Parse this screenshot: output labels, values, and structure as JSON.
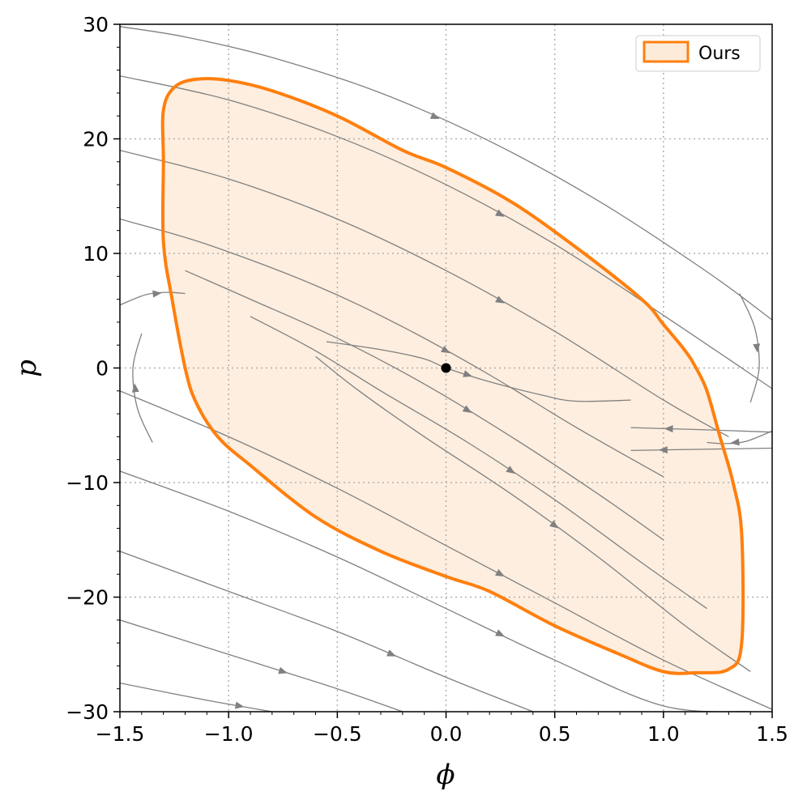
{
  "chart_data": {
    "type": "line",
    "xlabel": "ϕ",
    "ylabel": "p",
    "xlim": [
      -1.5,
      1.5
    ],
    "ylim": [
      -30,
      30
    ],
    "xticks": [
      -1.5,
      -1.0,
      -0.5,
      0.0,
      0.5,
      1.0,
      1.5
    ],
    "xtick_labels": [
      "−1.5",
      "−1.0",
      "−0.5",
      "0.0",
      "0.5",
      "1.0",
      "1.5"
    ],
    "yticks": [
      -30,
      -20,
      -10,
      0,
      10,
      20,
      30
    ],
    "ytick_labels": [
      "−30",
      "−20",
      "−10",
      "0",
      "10",
      "20",
      "30"
    ],
    "grid": true,
    "legend_position": "top-right",
    "colors": {
      "region_edge": "#ff7f0e",
      "region_fill": "#fdebd9",
      "streamline": "#808080",
      "equilibrium": "#000000",
      "grid": "#b0b0b0"
    },
    "series": [
      {
        "name": "Ours",
        "kind": "region_boundary",
        "x": [
          -1.3,
          -1.3,
          -1.25,
          -1.15,
          -1.0,
          -0.8,
          -0.5,
          -0.2,
          0.0,
          0.3,
          0.6,
          0.9,
          1.0,
          1.1,
          1.15,
          1.2,
          1.26,
          1.32,
          1.36,
          1.36,
          1.3,
          1.15,
          1.0,
          0.8,
          0.5,
          0.2,
          0.0,
          -0.3,
          -0.6,
          -0.9,
          -1.05,
          -1.15,
          -1.2,
          -1.26,
          -1.3
        ],
        "y": [
          18.0,
          22.5,
          24.5,
          25.2,
          25.1,
          24.2,
          22.0,
          19.0,
          17.5,
          14.5,
          10.5,
          6.0,
          3.8,
          1.5,
          0.0,
          -2.0,
          -6.0,
          -10.0,
          -14.5,
          -24.0,
          -26.3,
          -26.6,
          -26.5,
          -25.0,
          -22.5,
          -19.5,
          -18.2,
          -16.0,
          -13.0,
          -8.5,
          -6.0,
          -3.0,
          0.0,
          6.0,
          11.0
        ]
      },
      {
        "name": "",
        "kind": "equilibrium",
        "x": [
          0.0
        ],
        "y": [
          0.0
        ]
      }
    ],
    "streamlines": [
      {
        "x": [
          -1.5,
          -1.2,
          -0.8,
          -0.3,
          0.2,
          0.7,
          1.2,
          1.5
        ],
        "y": [
          29.8,
          28.9,
          27.1,
          24.0,
          19.8,
          14.6,
          8.4,
          4.2
        ]
      },
      {
        "x": [
          -1.5,
          -1.0,
          -0.5,
          0.0,
          0.5,
          1.0,
          1.5
        ],
        "y": [
          25.5,
          23.4,
          20.2,
          16.0,
          10.8,
          4.6,
          -1.8
        ]
      },
      {
        "x": [
          -1.5,
          -1.0,
          -0.5,
          0.0,
          0.5,
          1.0,
          1.3
        ],
        "y": [
          19.0,
          16.5,
          13.0,
          8.5,
          3.2,
          -2.8,
          -6.0
        ]
      },
      {
        "x": [
          -1.5,
          -1.1,
          -0.6,
          -0.2,
          0.2,
          0.6,
          1.0
        ],
        "y": [
          13.0,
          10.8,
          7.2,
          3.6,
          -0.6,
          -5.2,
          -9.5
        ]
      },
      {
        "x": [
          -1.2,
          -0.9,
          -0.5,
          -0.1,
          0.3,
          0.7,
          1.0
        ],
        "y": [
          8.5,
          6.0,
          2.6,
          -1.4,
          -6.0,
          -11.0,
          -15.0
        ]
      },
      {
        "x": [
          -0.9,
          -0.6,
          -0.3,
          0.1,
          0.5,
          0.9,
          1.2
        ],
        "y": [
          4.5,
          1.5,
          -2.0,
          -6.5,
          -11.5,
          -17.0,
          -21.0
        ]
      },
      {
        "x": [
          -0.6,
          -0.4,
          -0.1,
          0.3,
          0.7,
          1.1,
          1.4
        ],
        "y": [
          1.0,
          -2.0,
          -6.0,
          -11.0,
          -16.5,
          -22.5,
          -26.5
        ]
      },
      {
        "x": [
          -1.5,
          -1.0,
          -0.5,
          0.0,
          0.5,
          1.0,
          1.5
        ],
        "y": [
          -2.0,
          -6.0,
          -10.5,
          -15.5,
          -20.5,
          -25.5,
          -29.8
        ]
      },
      {
        "x": [
          -1.5,
          -1.0,
          -0.5,
          0.0,
          0.5,
          1.0,
          1.4
        ],
        "y": [
          -9.0,
          -12.5,
          -16.5,
          -21.0,
          -25.5,
          -29.5,
          -30.0
        ]
      },
      {
        "x": [
          -1.5,
          -1.0,
          -0.5,
          0.0,
          0.4
        ],
        "y": [
          -16.0,
          -19.5,
          -23.0,
          -27.0,
          -30.0
        ]
      },
      {
        "x": [
          -1.5,
          -1.0,
          -0.5,
          -0.2
        ],
        "y": [
          -22.0,
          -25.0,
          -28.0,
          -30.0
        ]
      },
      {
        "x": [
          -1.5,
          -1.1,
          -0.8
        ],
        "y": [
          -27.5,
          -29.0,
          -30.0
        ]
      },
      {
        "x": [
          -1.5,
          -1.38,
          -1.28,
          -1.2
        ],
        "y": [
          5.5,
          6.4,
          6.6,
          6.5
        ]
      },
      {
        "x": [
          -1.35,
          -1.42,
          -1.44,
          -1.4
        ],
        "y": [
          -6.5,
          -3.5,
          0.0,
          3.0
        ]
      },
      {
        "x": [
          1.5,
          1.38,
          1.28,
          1.2
        ],
        "y": [
          -5.5,
          -6.4,
          -6.6,
          -6.5
        ]
      },
      {
        "x": [
          1.35,
          1.42,
          1.44,
          1.4
        ],
        "y": [
          6.5,
          3.5,
          0.0,
          -3.0
        ]
      },
      {
        "x": [
          -0.55,
          -0.3,
          -0.1,
          0.0,
          0.2,
          0.45,
          0.6,
          0.85
        ],
        "y": [
          2.3,
          1.6,
          0.8,
          0.0,
          -1.2,
          -2.4,
          -2.9,
          -2.8
        ]
      },
      {
        "x": [
          1.5,
          1.15,
          0.85
        ],
        "y": [
          -7.0,
          -7.1,
          -7.2
        ]
      },
      {
        "x": [
          1.5,
          1.2,
          0.85
        ],
        "y": [
          -5.6,
          -5.4,
          -5.2
        ]
      }
    ]
  },
  "legend": {
    "label": "Ours"
  }
}
